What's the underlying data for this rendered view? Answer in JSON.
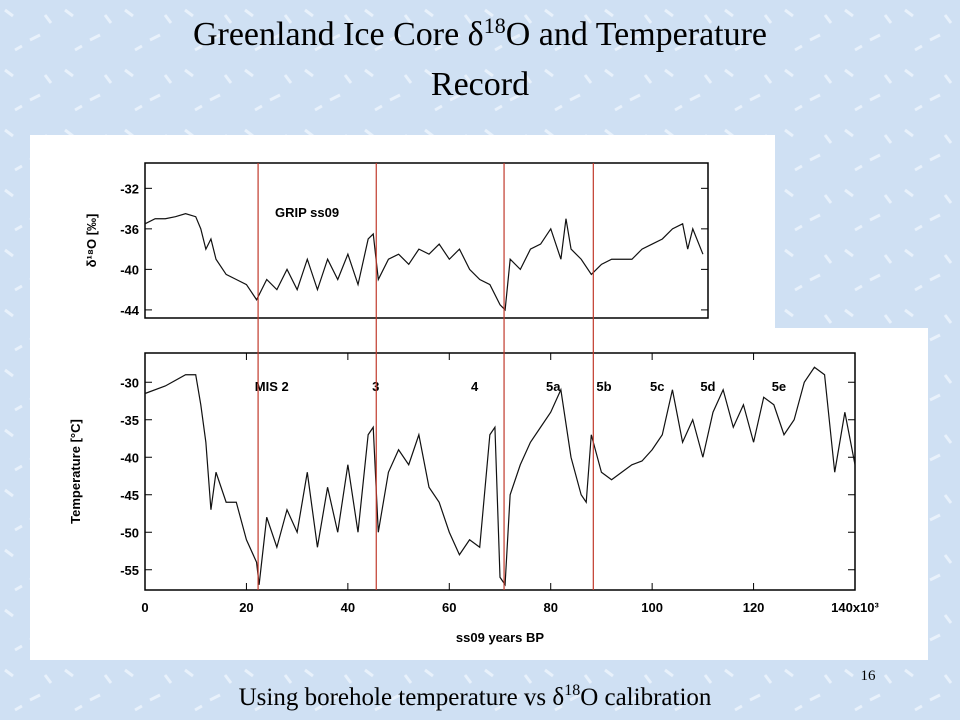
{
  "slide": {
    "title": [
      "Greenland Ice Core δ",
      "18",
      "O and Temperature",
      "Record"
    ],
    "caption": [
      "Using borehole temperature vs δ",
      "18",
      "O calibration"
    ],
    "page_number": "16"
  },
  "chart_data": [
    {
      "type": "line",
      "annotation": "GRIP ss09",
      "y_label": "δ¹⁸O [‰]",
      "xlim": [
        0,
        111
      ],
      "ylim": [
        -44.8,
        -29.5
      ],
      "yticks": [
        -32,
        -36,
        -40,
        -44
      ],
      "x": [
        0,
        2,
        4,
        6,
        8,
        10,
        11,
        12,
        13,
        14,
        16,
        18,
        20,
        22,
        24,
        26,
        28,
        30,
        32,
        34,
        36,
        38,
        40,
        42,
        44,
        45,
        46,
        48,
        50,
        52,
        54,
        56,
        58,
        60,
        62,
        64,
        66,
        68,
        70,
        71,
        72,
        74,
        76,
        78,
        80,
        82,
        83,
        84,
        86,
        88,
        90,
        92,
        94,
        96,
        98,
        100,
        102,
        104,
        106,
        107,
        108,
        110
      ],
      "series": [
        {
          "color": "#111111",
          "values": [
            -35.5,
            -35,
            -35,
            -34.8,
            -34.5,
            -34.8,
            -36,
            -38,
            -37,
            -39,
            -40.5,
            -41,
            -41.5,
            -43,
            -41,
            -42,
            -40,
            -42,
            -39,
            -42,
            -39,
            -41,
            -38.5,
            -41.5,
            -37,
            -36.5,
            -41,
            -39,
            -38.5,
            -39.5,
            -38,
            -38.5,
            -37.5,
            -39,
            -38,
            -40,
            -41,
            -41.5,
            -43.5,
            -44,
            -39,
            -40,
            -38,
            -37.5,
            -36,
            -39,
            -35,
            -38,
            -39,
            -40.5,
            -39.5,
            -39,
            -39,
            -39,
            -38,
            -37.5,
            -37,
            -36,
            -35.5,
            -38,
            -36,
            -38.5
          ]
        }
      ]
    },
    {
      "type": "line",
      "x_label": "ss09 years BP",
      "y_label": "Temperature [°C]",
      "xlim": [
        0,
        140
      ],
      "ylim": [
        -57.7,
        -26.1
      ],
      "xticks": [
        0,
        20,
        40,
        60,
        80,
        100,
        120,
        {
          "value": 140,
          "label": "140x10³"
        }
      ],
      "yticks": [
        -30,
        -35,
        -40,
        -45,
        -50,
        -55
      ],
      "annotations": [
        {
          "text": "MIS 2",
          "x": 25
        },
        {
          "text": "3",
          "x": 45.5
        },
        {
          "text": "4",
          "x": 65
        },
        {
          "text": "5a",
          "x": 80.5
        },
        {
          "text": "5b",
          "x": 90.5
        },
        {
          "text": "5c",
          "x": 101
        },
        {
          "text": "5d",
          "x": 111
        },
        {
          "text": "5e",
          "x": 125
        }
      ],
      "reference_lines": {
        "color": "#c0392b",
        "x": [
          22.3,
          45.6,
          70.8,
          88.4
        ]
      },
      "x": [
        0,
        4,
        8,
        10,
        11,
        12,
        13,
        14,
        16,
        18,
        20,
        22,
        22.5,
        24,
        26,
        28,
        30,
        32,
        34,
        36,
        38,
        40,
        42,
        44,
        45,
        46,
        48,
        50,
        52,
        54,
        56,
        58,
        60,
        62,
        64,
        66,
        68,
        69,
        70,
        71,
        72,
        74,
        76,
        78,
        80,
        82,
        84,
        86,
        87,
        88,
        90,
        92,
        94,
        96,
        98,
        100,
        102,
        104,
        106,
        108,
        110,
        112,
        114,
        116,
        118,
        120,
        122,
        124,
        126,
        128,
        130,
        132,
        134,
        136,
        138,
        140
      ],
      "series": [
        {
          "color": "#111111",
          "values": [
            -31.5,
            -30.5,
            -29,
            -29,
            -33,
            -38,
            -47,
            -42,
            -46,
            -46,
            -51,
            -54,
            -57,
            -48,
            -52,
            -47,
            -50,
            -42,
            -52,
            -44,
            -50,
            -41,
            -50,
            -37,
            -36,
            -50,
            -42,
            -39,
            -41,
            -37,
            -44,
            -46,
            -50,
            -53,
            -51,
            -52,
            -37,
            -36,
            -56,
            -57,
            -45,
            -41,
            -38,
            -36,
            -34,
            -31,
            -40,
            -45,
            -46,
            -37,
            -42,
            -43,
            -42,
            -41,
            -40.5,
            -39,
            -37,
            -31,
            -38,
            -35,
            -40,
            -34,
            -31,
            -36,
            -33,
            -38,
            -32,
            -33,
            -37,
            -35,
            -30,
            -28,
            -29,
            -42,
            -34,
            -41
          ]
        }
      ]
    }
  ]
}
